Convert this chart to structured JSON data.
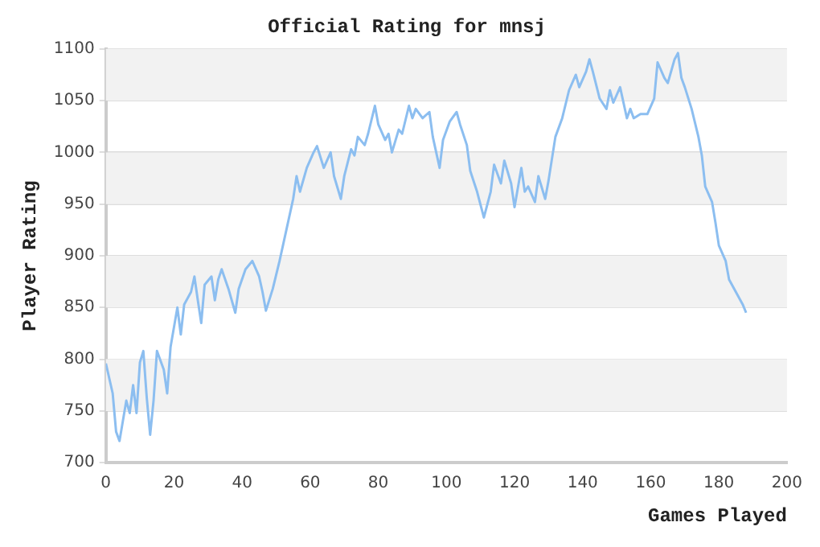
{
  "chart_data": {
    "type": "line",
    "title": "Official Rating for mnsj",
    "xlabel": "Games Played",
    "ylabel": "Player Rating",
    "x": [
      0,
      2,
      3,
      4,
      6,
      7,
      8,
      9,
      10,
      11,
      12,
      13,
      14,
      15,
      17,
      18,
      19,
      21,
      22,
      23,
      25,
      26,
      27,
      28,
      29,
      31,
      32,
      33,
      34,
      36,
      38,
      39,
      41,
      43,
      45,
      46,
      47,
      49,
      51,
      53,
      55,
      56,
      57,
      59,
      61,
      62,
      64,
      66,
      67,
      69,
      70,
      72,
      73,
      74,
      76,
      77,
      79,
      80,
      82,
      83,
      84,
      86,
      87,
      89,
      90,
      91,
      93,
      95,
      96,
      98,
      99,
      101,
      103,
      104,
      106,
      107,
      109,
      111,
      113,
      114,
      116,
      117,
      119,
      120,
      122,
      123,
      124,
      126,
      127,
      129,
      130,
      132,
      134,
      136,
      138,
      139,
      141,
      142,
      143,
      145,
      147,
      148,
      149,
      151,
      153,
      154,
      155,
      157,
      159,
      161,
      162,
      164,
      165,
      167,
      168,
      169,
      170,
      172,
      174,
      175,
      176,
      178,
      179,
      180,
      182,
      183,
      185,
      187,
      188
    ],
    "series": [
      {
        "color": "#8cbef0",
        "values": [
          796,
          767,
          730,
          721,
          760,
          748,
          775,
          748,
          797,
          808,
          763,
          727,
          760,
          808,
          790,
          767,
          812,
          850,
          824,
          853,
          865,
          880,
          857,
          835,
          872,
          880,
          857,
          877,
          887,
          868,
          845,
          868,
          887,
          895,
          880,
          865,
          847,
          868,
          895,
          925,
          955,
          977,
          962,
          985,
          1000,
          1006,
          985,
          1000,
          977,
          955,
          977,
          1003,
          997,
          1015,
          1007,
          1018,
          1045,
          1027,
          1012,
          1018,
          1000,
          1022,
          1018,
          1045,
          1033,
          1042,
          1033,
          1039,
          1015,
          985,
          1012,
          1030,
          1039,
          1027,
          1007,
          982,
          962,
          937,
          962,
          988,
          970,
          992,
          970,
          947,
          985,
          962,
          967,
          952,
          977,
          955,
          973,
          1015,
          1033,
          1060,
          1075,
          1063,
          1078,
          1090,
          1078,
          1052,
          1042,
          1060,
          1048,
          1063,
          1033,
          1042,
          1033,
          1037,
          1037,
          1052,
          1087,
          1072,
          1067,
          1090,
          1096,
          1072,
          1063,
          1042,
          1015,
          997,
          967,
          952,
          932,
          910,
          895,
          877,
          865,
          853,
          845
        ]
      }
    ],
    "xlim": [
      0,
      200
    ],
    "xticks": [
      0,
      20,
      40,
      60,
      80,
      100,
      120,
      140,
      160,
      180,
      200
    ],
    "ylim": [
      700,
      1100
    ],
    "yticks": [
      700,
      750,
      800,
      850,
      900,
      950,
      1000,
      1050,
      1100
    ],
    "grid": "y",
    "legend": false,
    "marker": "none",
    "line_style": "solid"
  }
}
